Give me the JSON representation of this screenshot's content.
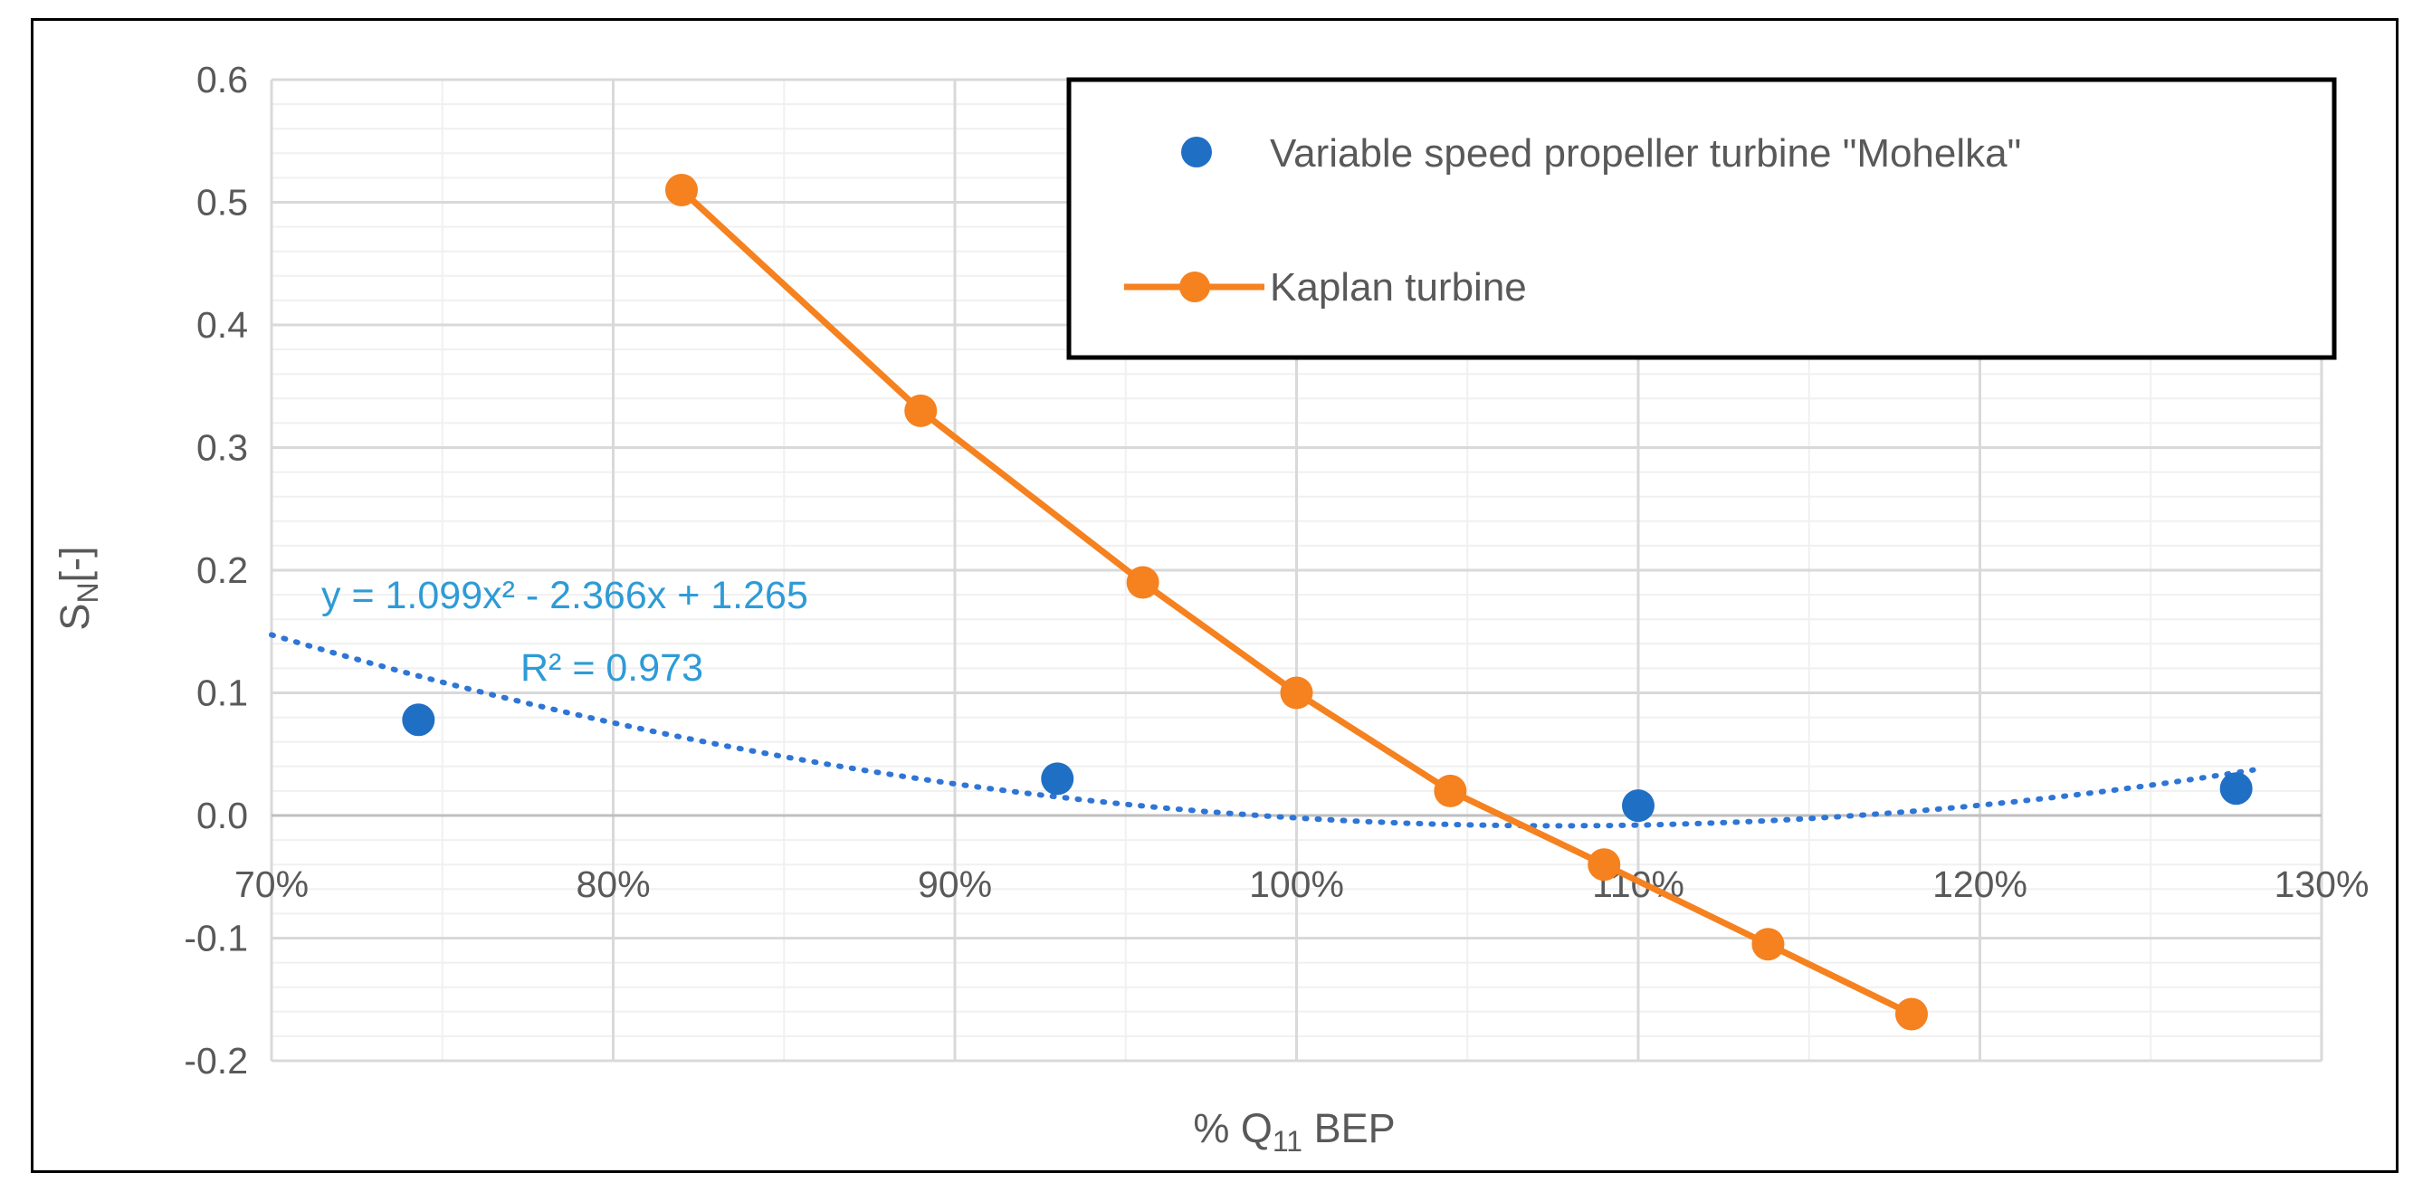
{
  "chart_data": {
    "type": "scatter",
    "title": "",
    "xlabel_main": "% Q",
    "xlabel_sub": "11",
    "xlabel_tail": " BEP",
    "ylabel_main": "S",
    "ylabel_sub": "N",
    "ylabel_tail": "[-]",
    "xlim": [
      0.7,
      1.3
    ],
    "ylim": [
      -0.2,
      0.6
    ],
    "x_ticks": [
      0.7,
      0.8,
      0.9,
      1.0,
      1.1,
      1.2,
      1.3
    ],
    "x_tick_labels": [
      "70%",
      "80%",
      "90%",
      "100%",
      "110%",
      "120%",
      "130%"
    ],
    "y_ticks": [
      -0.2,
      -0.1,
      0.0,
      0.1,
      0.2,
      0.3,
      0.4,
      0.5,
      0.6
    ],
    "y_tick_labels": [
      "-0.2",
      "-0.1",
      "0.0",
      "0.1",
      "0.2",
      "0.3",
      "0.4",
      "0.5",
      "0.6"
    ],
    "grid": true,
    "legend_position": "top-right",
    "series": [
      {
        "name": "Variable speed propeller turbine \"Mohelka\"",
        "kind": "markers",
        "color": "#1f6fc5",
        "x": [
          0.743,
          0.93,
          1.1,
          1.275
        ],
        "y": [
          0.078,
          0.03,
          0.008,
          0.022
        ]
      },
      {
        "name": "Kaplan turbine",
        "kind": "line-markers",
        "color": "#f5811f",
        "x": [
          0.82,
          0.89,
          0.955,
          1.0,
          1.045,
          1.09,
          1.138,
          1.18
        ],
        "y": [
          0.51,
          0.33,
          0.19,
          0.1,
          0.02,
          -0.04,
          -0.105,
          -0.162
        ]
      }
    ],
    "trendline": {
      "series": "Variable speed propeller turbine \"Mohelka\"",
      "type": "polynomial",
      "coefficients": [
        1.099,
        -2.366,
        1.265
      ],
      "x_range": [
        0.7,
        1.28
      ],
      "color": "#2e75d6",
      "equation_label": "y = 1.099x² - 2.366x + 1.265",
      "r2_label": "R² = 0.973"
    }
  }
}
